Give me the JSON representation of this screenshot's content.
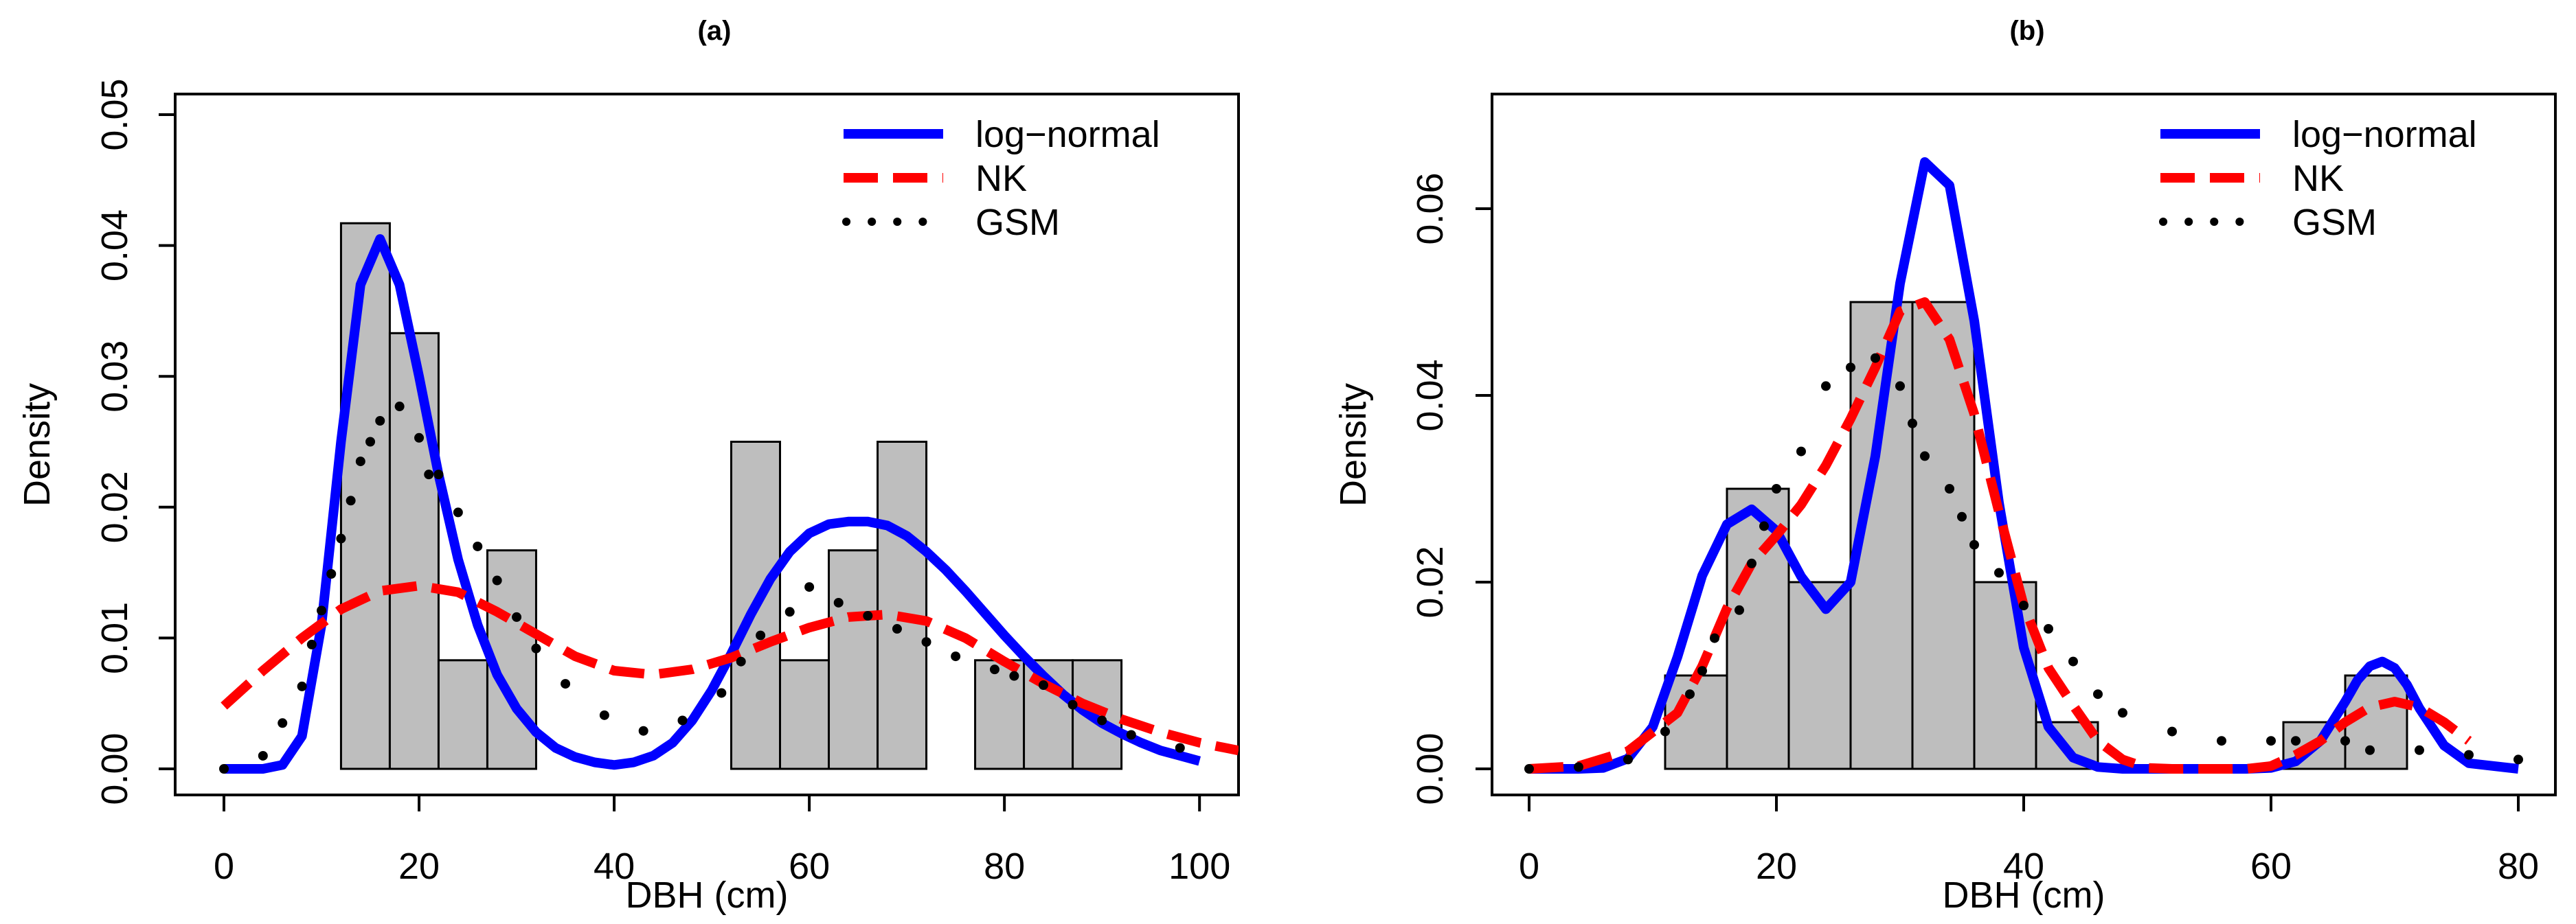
{
  "colors": {
    "bar_fill": "#bebebe",
    "bar_stroke": "#000000",
    "log_normal": "#0000ff",
    "nk": "#ff0000",
    "gsm": "#000000"
  },
  "chart_data": [
    {
      "type": "bar",
      "panel_label": "(a)",
      "xlabel": "DBH (cm)",
      "ylabel": "Density",
      "xlim": [
        -5,
        104
      ],
      "ylim": [
        0,
        0.05
      ],
      "x_ticks": [
        0,
        20,
        40,
        60,
        80,
        100
      ],
      "y_ticks": [
        0.0,
        0.01,
        0.02,
        0.03,
        0.04,
        0.05
      ],
      "x_tick_labels": [
        "0",
        "20",
        "40",
        "60",
        "80",
        "100"
      ],
      "y_tick_labels": [
        "0.00",
        "0.01",
        "0.02",
        "0.03",
        "0.04",
        "0.05"
      ],
      "legend": {
        "position": "top-right",
        "entries": [
          {
            "label": "log−normal",
            "style": "solid"
          },
          {
            "label": "NK",
            "style": "dashed"
          },
          {
            "label": "GSM",
            "style": "dotted"
          }
        ]
      },
      "histogram": {
        "bin_edges": [
          12,
          17,
          22,
          27,
          32,
          37,
          42,
          47,
          52,
          57,
          62,
          67,
          72,
          77,
          82,
          87,
          92
        ],
        "densities": [
          0.0417,
          0.0333,
          0.0083,
          0.0167,
          0,
          0,
          0,
          0,
          0.025,
          0.0083,
          0.0167,
          0.025,
          0,
          0.0083,
          0.0083,
          0.0083
        ]
      },
      "series": [
        {
          "name": "log−normal",
          "style": "solid",
          "x": [
            0,
            4,
            6,
            8,
            10,
            12,
            14,
            16,
            18,
            20,
            22,
            24,
            26,
            28,
            30,
            32,
            34,
            36,
            38,
            40,
            42,
            44,
            46,
            48,
            50,
            52,
            54,
            56,
            58,
            60,
            62,
            64,
            66,
            68,
            70,
            72,
            74,
            76,
            78,
            80,
            82,
            84,
            86,
            88,
            90,
            92,
            94,
            96,
            98,
            100
          ],
          "y": [
            0,
            0,
            0.0003,
            0.0025,
            0.011,
            0.025,
            0.037,
            0.0405,
            0.037,
            0.03,
            0.0225,
            0.016,
            0.011,
            0.0072,
            0.0046,
            0.0028,
            0.0016,
            0.0009,
            0.0005,
            0.0003,
            0.0005,
            0.001,
            0.002,
            0.0037,
            0.006,
            0.0088,
            0.0118,
            0.0145,
            0.0166,
            0.018,
            0.0187,
            0.0189,
            0.0189,
            0.0186,
            0.0178,
            0.0166,
            0.0152,
            0.0136,
            0.0119,
            0.0102,
            0.0086,
            0.0071,
            0.0057,
            0.0045,
            0.0035,
            0.0027,
            0.002,
            0.0014,
            0.001,
            0.0006
          ]
        },
        {
          "name": "NK",
          "style": "dashed",
          "x": [
            0,
            4,
            8,
            12,
            16,
            20,
            24,
            28,
            32,
            36,
            40,
            44,
            48,
            52,
            56,
            60,
            64,
            68,
            72,
            76,
            80,
            84,
            88,
            92,
            96,
            100,
            104
          ],
          "y": [
            0.0048,
            0.0075,
            0.01,
            0.0122,
            0.0136,
            0.014,
            0.0135,
            0.012,
            0.0103,
            0.0086,
            0.0075,
            0.0072,
            0.0076,
            0.0085,
            0.0097,
            0.0108,
            0.0116,
            0.0118,
            0.0113,
            0.01,
            0.0082,
            0.0065,
            0.005,
            0.0038,
            0.0028,
            0.002,
            0.0014
          ]
        },
        {
          "name": "GSM",
          "style": "dotted",
          "x": [
            0,
            4,
            6,
            8,
            9,
            10,
            11,
            12,
            13,
            14,
            15,
            16,
            18,
            20,
            21,
            22,
            24,
            26,
            28,
            30,
            32,
            35,
            39,
            43,
            47,
            51,
            53,
            55,
            58,
            60,
            63,
            66,
            69,
            72,
            75,
            79,
            81,
            84,
            87,
            90,
            93,
            98
          ],
          "y": [
            0,
            0.001,
            0.0035,
            0.0063,
            0.0095,
            0.0121,
            0.0149,
            0.0176,
            0.0205,
            0.0235,
            0.025,
            0.0266,
            0.0277,
            0.0253,
            0.0225,
            0.0225,
            0.0196,
            0.017,
            0.0144,
            0.0116,
            0.0092,
            0.0065,
            0.0041,
            0.0029,
            0.0037,
            0.0058,
            0.0082,
            0.0102,
            0.012,
            0.0139,
            0.0127,
            0.0117,
            0.0107,
            0.0097,
            0.0086,
            0.0076,
            0.0071,
            0.0064,
            0.0049,
            0.0037,
            0.0026,
            0.0016
          ]
        }
      ]
    },
    {
      "type": "bar",
      "panel_label": "(b)",
      "xlabel": "DBH (cm)",
      "ylabel": "Density",
      "xlim": [
        -3,
        83
      ],
      "ylim": [
        0,
        0.07
      ],
      "x_ticks": [
        0,
        20,
        40,
        60,
        80
      ],
      "y_ticks": [
        0.0,
        0.02,
        0.04,
        0.06
      ],
      "x_tick_labels": [
        "0",
        "20",
        "40",
        "60",
        "80"
      ],
      "y_tick_labels": [
        "0.00",
        "0.02",
        "0.04",
        "0.06"
      ],
      "legend": {
        "position": "top-right",
        "entries": [
          {
            "label": "log−normal",
            "style": "solid"
          },
          {
            "label": "NK",
            "style": "dashed"
          },
          {
            "label": "GSM",
            "style": "dotted"
          }
        ]
      },
      "histogram": {
        "bin_edges": [
          11,
          16,
          21,
          26,
          31,
          36,
          41,
          46,
          51,
          56,
          61,
          66,
          71
        ],
        "densities": [
          0.01,
          0.03,
          0.02,
          0.05,
          0.05,
          0.02,
          0.005,
          0,
          0,
          0,
          0.005,
          0.01
        ]
      },
      "series": [
        {
          "name": "log−normal",
          "style": "solid",
          "x": [
            0,
            4,
            6,
            8,
            10,
            12,
            14,
            16,
            18,
            20,
            22,
            24,
            26,
            28,
            30,
            32,
            34,
            36,
            38,
            40,
            42,
            44,
            46,
            48,
            50,
            54,
            58,
            60,
            62,
            64,
            66,
            67,
            68,
            69,
            70,
            71,
            72,
            74,
            76,
            80
          ],
          "y": [
            0,
            0,
            0.0001,
            0.0011,
            0.0045,
            0.012,
            0.0207,
            0.0262,
            0.0278,
            0.0255,
            0.0206,
            0.0171,
            0.02,
            0.0335,
            0.052,
            0.065,
            0.0625,
            0.048,
            0.0285,
            0.013,
            0.0045,
            0.0012,
            0.0002,
            0,
            0,
            0,
            0,
            0.0001,
            0.0008,
            0.003,
            0.0072,
            0.0095,
            0.011,
            0.0115,
            0.0108,
            0.009,
            0.0065,
            0.0025,
            0.0006,
            0
          ]
        },
        {
          "name": "NK",
          "style": "dashed",
          "x": [
            0,
            4,
            8,
            12,
            14,
            16,
            18,
            20,
            22,
            24,
            26,
            28,
            30,
            32,
            34,
            36,
            38,
            40,
            42,
            44,
            46,
            48,
            50,
            52,
            54,
            56,
            58,
            60,
            62,
            64,
            66,
            68,
            70,
            72,
            74,
            76
          ],
          "y": [
            0,
            0.0003,
            0.0019,
            0.006,
            0.011,
            0.0172,
            0.022,
            0.025,
            0.0283,
            0.0325,
            0.0375,
            0.043,
            0.049,
            0.05,
            0.046,
            0.038,
            0.0275,
            0.0175,
            0.0108,
            0.0068,
            0.003,
            0.001,
            0.0001,
            0,
            0,
            0,
            0,
            0.0003,
            0.0015,
            0.003,
            0.005,
            0.0066,
            0.0072,
            0.0066,
            0.005,
            0.003
          ]
        },
        {
          "name": "GSM",
          "style": "dotted",
          "x": [
            0,
            4,
            8,
            11,
            13,
            14,
            15,
            17,
            18,
            19,
            20,
            22,
            24,
            26,
            28,
            30,
            31,
            32,
            34,
            35,
            36,
            38,
            40,
            42,
            44,
            46,
            48,
            52,
            56,
            60,
            62,
            66,
            68,
            72,
            76,
            80
          ],
          "y": [
            0,
            0.0002,
            0.001,
            0.004,
            0.008,
            0.0105,
            0.014,
            0.017,
            0.022,
            0.026,
            0.03,
            0.034,
            0.041,
            0.043,
            0.044,
            0.041,
            0.037,
            0.0335,
            0.03,
            0.027,
            0.024,
            0.021,
            0.0175,
            0.015,
            0.0115,
            0.008,
            0.006,
            0.004,
            0.003,
            0.003,
            0.003,
            0.003,
            0.002,
            0.002,
            0.0015,
            0.001
          ]
        }
      ]
    }
  ]
}
